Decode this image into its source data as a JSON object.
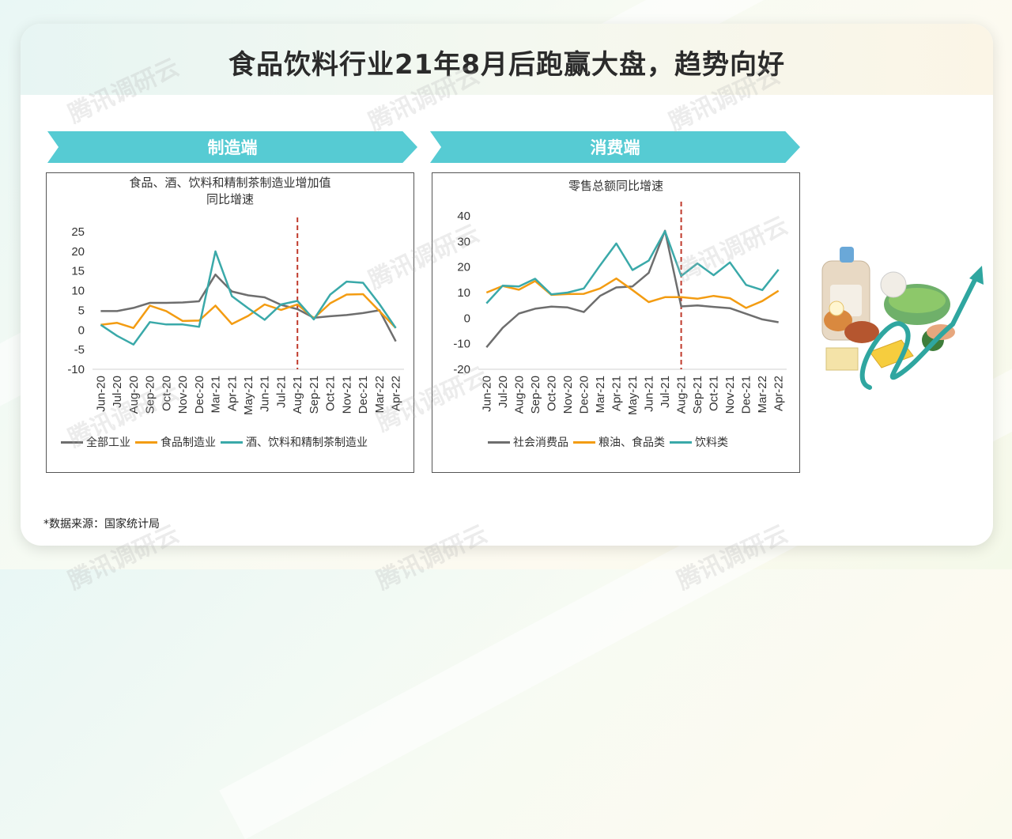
{
  "title": "食品饮料行业21年8月后跑赢大盘，趋势向好",
  "source": "*数据来源：国家统计局",
  "watermark": "腾讯调研云",
  "banners": {
    "left": "制造端",
    "right": "消费端"
  },
  "colors": {
    "banner": "#56cbd3",
    "gray": "#6e6e6e",
    "orange": "#f39c12",
    "teal": "#3aa9a9",
    "divider": "#c0392b"
  },
  "chart_data": [
    {
      "type": "line",
      "title_line1": "食品、酒、饮料和精制茶制造业增加值",
      "title_line2": "同比增速",
      "categories": [
        "Jun-20",
        "Jul-20",
        "Aug-20",
        "Sep-20",
        "Oct-20",
        "Nov-20",
        "Dec-20",
        "Mar-21",
        "Apr-21",
        "May-21",
        "Jun-21",
        "Jul-21",
        "Aug-21",
        "Sep-21",
        "Oct-21",
        "Nov-21",
        "Dec-21",
        "Mar-22",
        "Apr-22"
      ],
      "ylim": [
        -10,
        25
      ],
      "yticks": [
        -10,
        -5,
        0,
        5,
        10,
        15,
        20,
        25
      ],
      "divider_at": "Aug-21",
      "series": [
        {
          "name": "全部工业",
          "color": "#6e6e6e",
          "values": [
            4.8,
            4.8,
            5.6,
            6.9,
            6.9,
            7.0,
            7.3,
            14.1,
            9.8,
            8.8,
            8.3,
            6.4,
            5.3,
            3.1,
            3.5,
            3.8,
            4.3,
            5.0,
            -2.9
          ]
        },
        {
          "name": "食品制造业",
          "color": "#f39c12",
          "values": [
            1.3,
            1.8,
            0.5,
            6.2,
            4.8,
            2.3,
            2.4,
            6.2,
            1.5,
            3.6,
            6.5,
            5.1,
            6.5,
            3.0,
            6.8,
            9.0,
            9.1,
            4.8,
            0.5
          ]
        },
        {
          "name": "酒、饮料和精制茶制造业",
          "color": "#3aa9a9",
          "values": [
            1.3,
            -1.5,
            -3.7,
            2.0,
            1.4,
            1.4,
            0.8,
            20.0,
            8.6,
            5.5,
            2.6,
            6.5,
            7.4,
            2.7,
            9.0,
            12.3,
            12.0,
            6.6,
            0.5
          ]
        }
      ]
    },
    {
      "type": "line",
      "title_line1": "零售总额同比增速",
      "categories": [
        "Jun-20",
        "Jul-20",
        "Aug-20",
        "Sep-20",
        "Oct-20",
        "Nov-20",
        "Dec-20",
        "Mar-21",
        "Apr-21",
        "May-21",
        "Jun-21",
        "Jul-21",
        "Aug-21",
        "Sep-21",
        "Oct-21",
        "Nov-21",
        "Dec-21",
        "Mar-22",
        "Apr-22"
      ],
      "ylim": [
        -20,
        40
      ],
      "yticks": [
        -20,
        -10,
        0,
        10,
        20,
        30,
        40
      ],
      "divider_at": "Aug-21",
      "series": [
        {
          "name": "社会消费品",
          "color": "#6e6e6e",
          "values": [
            -11.4,
            -3.8,
            1.8,
            3.7,
            4.5,
            4.2,
            2.4,
            8.7,
            12.0,
            12.4,
            17.7,
            34.2,
            4.6,
            5.0,
            4.4,
            3.9,
            1.7,
            -0.5,
            -1.6
          ]
        },
        {
          "name": "粮油、食品类",
          "color": "#f39c12",
          "values": [
            10.0,
            12.6,
            11.1,
            14.5,
            9.1,
            9.4,
            9.5,
            11.6,
            15.5,
            11.0,
            6.3,
            8.2,
            8.2,
            7.6,
            8.7,
            7.8,
            4.0,
            6.7,
            10.7
          ]
        },
        {
          "name": "饮料类",
          "color": "#3aa9a9",
          "values": [
            5.8,
            12.7,
            12.4,
            15.4,
            9.3,
            10.0,
            11.6,
            20.6,
            29.2,
            18.8,
            22.5,
            34.0,
            16.5,
            21.4,
            16.8,
            21.8,
            13.0,
            11.0,
            19.0
          ]
        }
      ]
    }
  ]
}
